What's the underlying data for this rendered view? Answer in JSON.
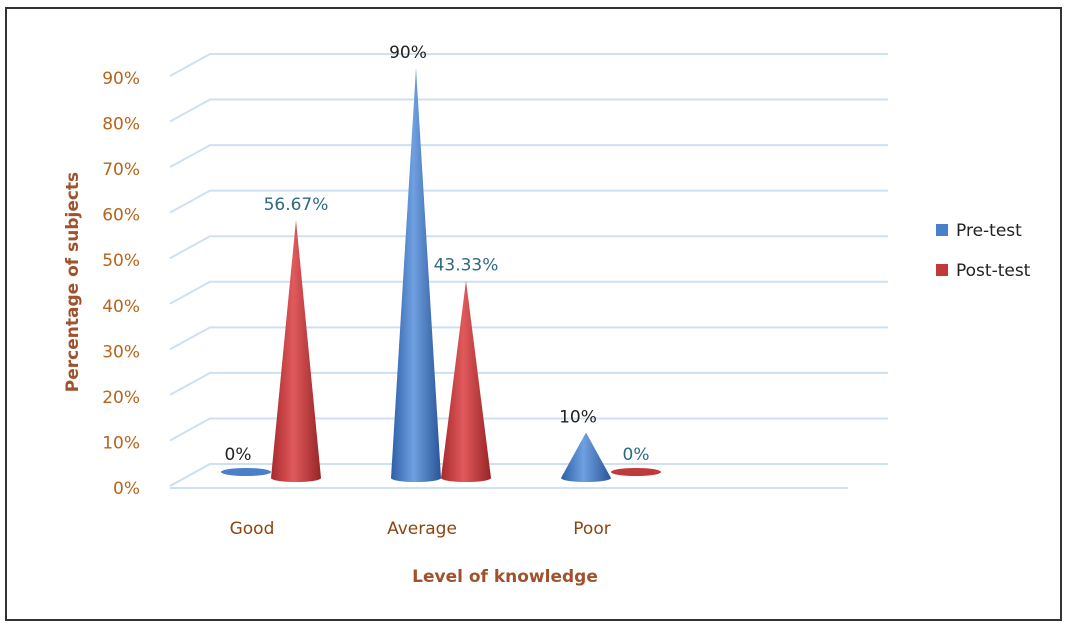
{
  "chart_data": {
    "type": "bar",
    "shape": "cone-3d",
    "categories": [
      "Good",
      "Average",
      "Poor"
    ],
    "series": [
      {
        "name": "Pre-test",
        "values": [
          0,
          90,
          10
        ],
        "labels": [
          "0%",
          "90%",
          "10%"
        ],
        "color": "#4a7fc9",
        "label_color": "#222222"
      },
      {
        "name": "Post-test",
        "values": [
          56.67,
          43.33,
          0
        ],
        "labels": [
          "56.67%",
          "43.33%",
          "0%"
        ],
        "color": "#c0393b",
        "label_color": "#2d6a80"
      }
    ],
    "ylim": [
      0,
      90
    ],
    "yticks": [
      0,
      10,
      20,
      30,
      40,
      50,
      60,
      70,
      80,
      90
    ],
    "ytick_labels": [
      "0%",
      "10%",
      "20%",
      "30%",
      "40%",
      "50%",
      "60%",
      "70%",
      "80%",
      "90%"
    ],
    "xlabel": "Level of knowledge",
    "ylabel": "Percentage of subjects",
    "grid": true,
    "legend": "right"
  }
}
